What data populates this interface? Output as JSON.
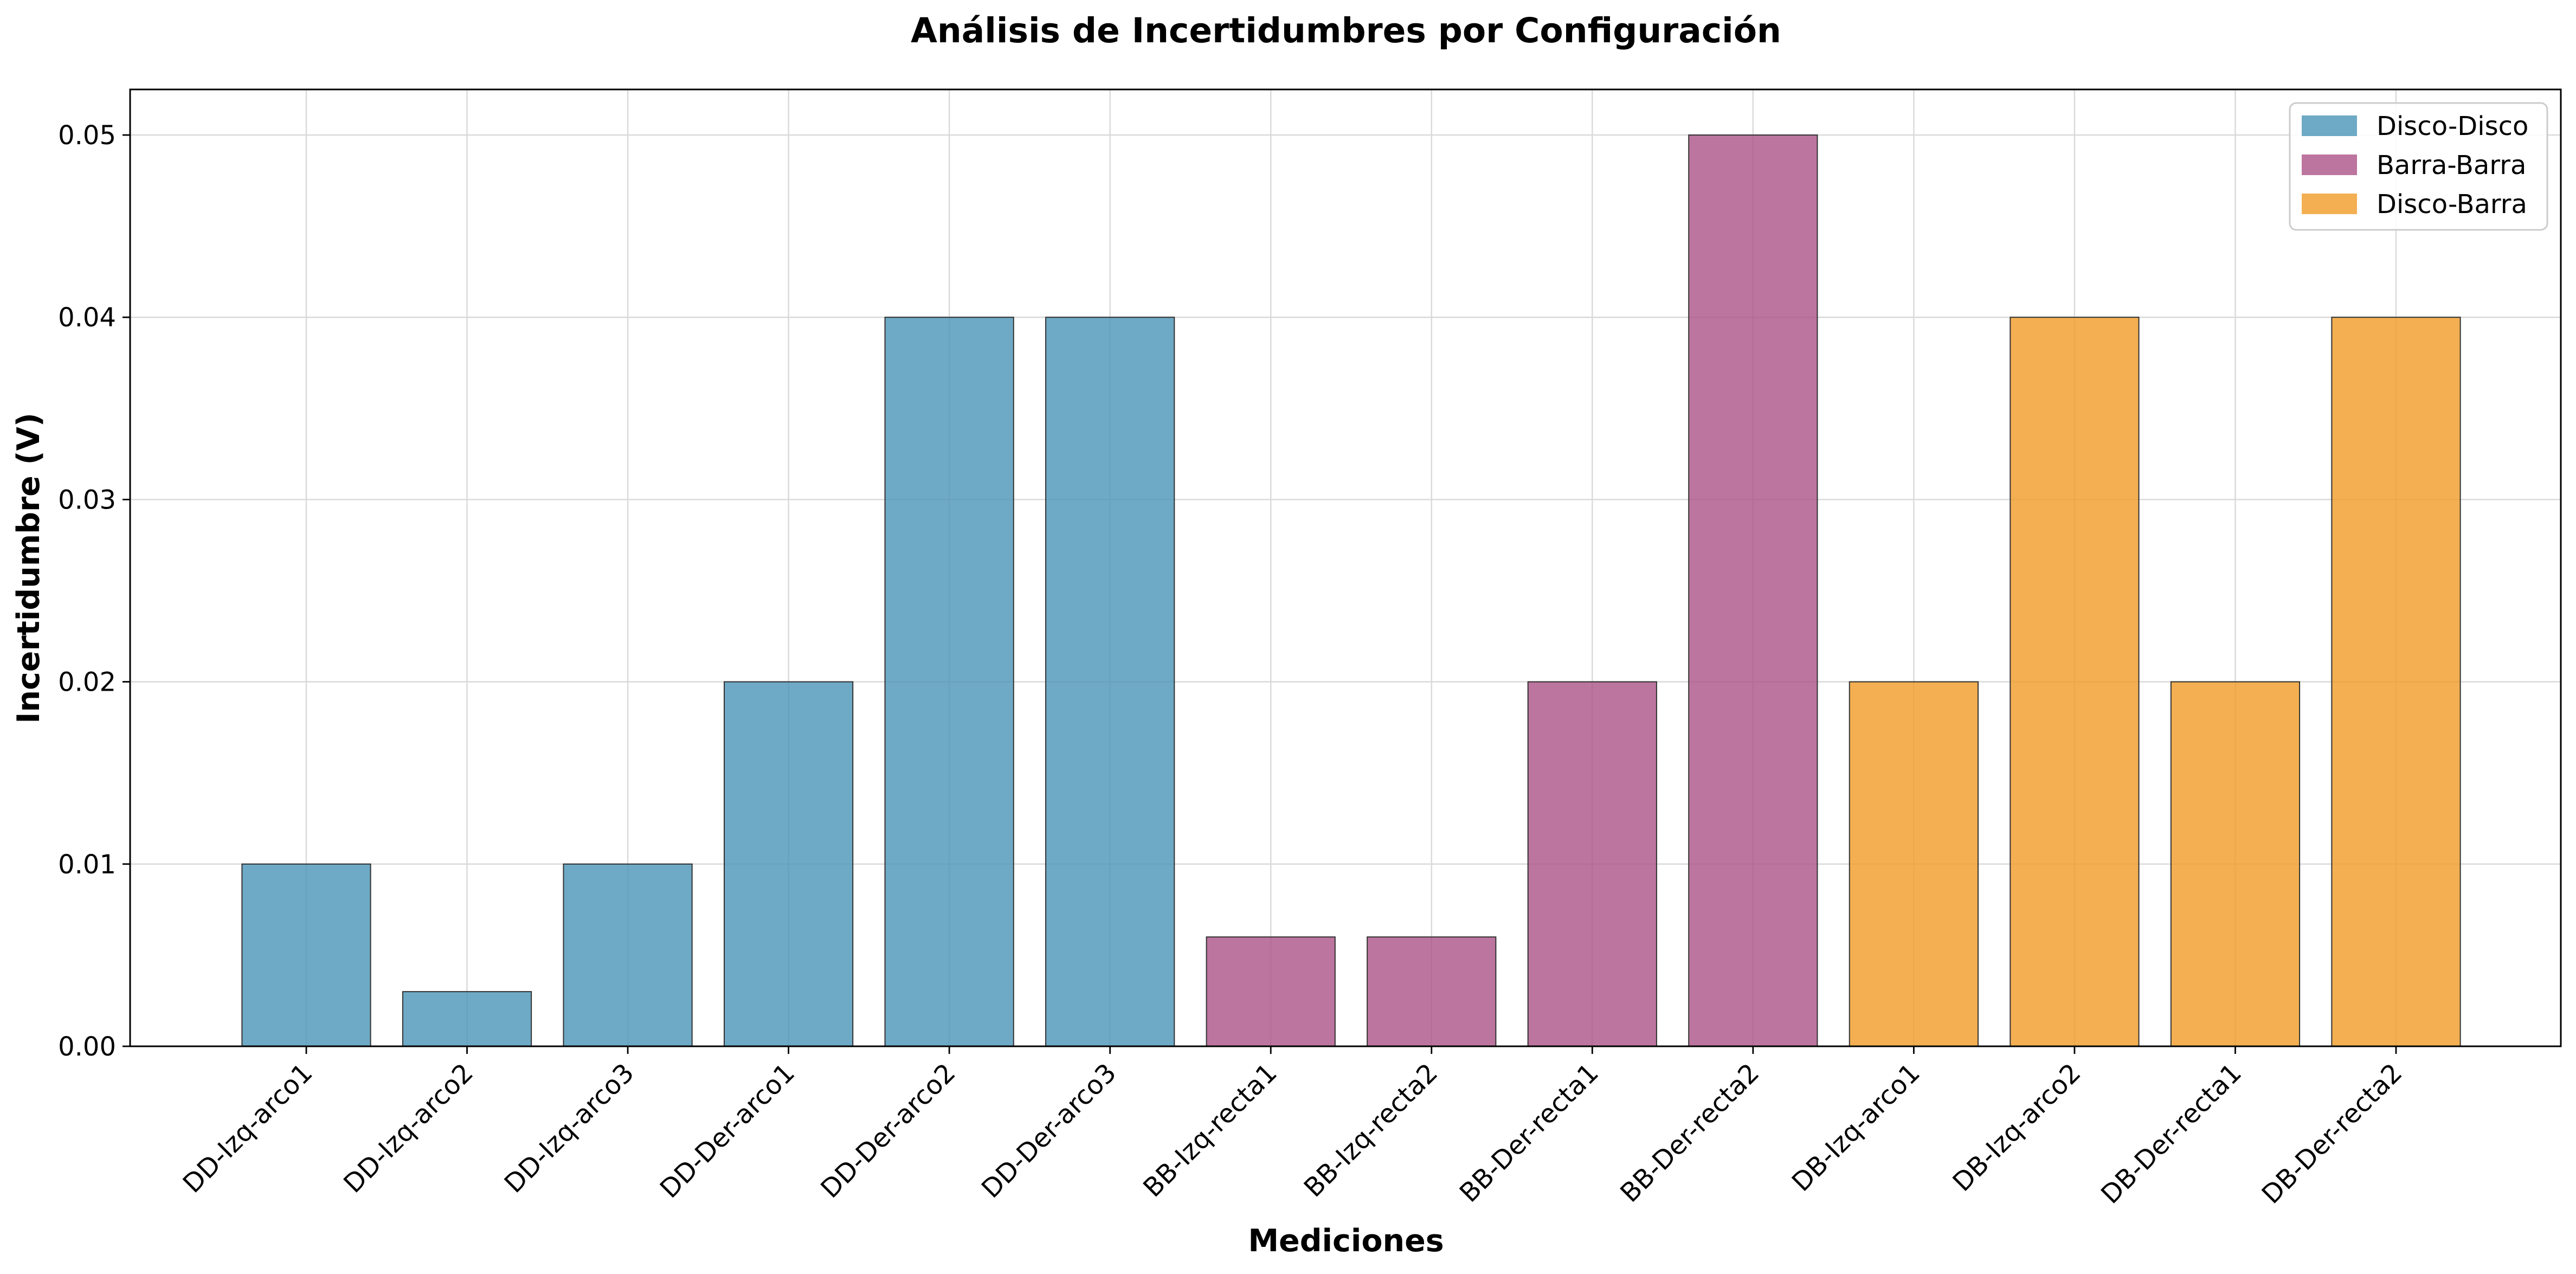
{
  "chart_data": {
    "type": "bar",
    "title": "Análisis de Incertidumbres por Configuración",
    "xlabel": "Mediciones",
    "ylabel": "Incertidumbre (V)",
    "ylim": [
      0,
      0.0525
    ],
    "yticks": [
      0.0,
      0.01,
      0.02,
      0.03,
      0.04,
      0.05
    ],
    "ytick_labels": [
      "0.00",
      "0.01",
      "0.02",
      "0.03",
      "0.04",
      "0.05"
    ],
    "grid": true,
    "legend_position": "top-right",
    "categories": [
      "DD-Izq-arco1",
      "DD-Izq-arco2",
      "DD-Izq-arco3",
      "DD-Der-arco1",
      "DD-Der-arco2",
      "DD-Der-arco3",
      "BB-Izq-recta1",
      "BB-Izq-recta2",
      "BB-Der-recta1",
      "BB-Der-recta2",
      "DB-Izq-arco1",
      "DB-Izq-arco2",
      "DB-Der-recta1",
      "DB-Der-recta2"
    ],
    "values": [
      0.01,
      0.003,
      0.01,
      0.02,
      0.04,
      0.04,
      0.006,
      0.006,
      0.02,
      0.05,
      0.02,
      0.04,
      0.02,
      0.04
    ],
    "bar_groups": [
      0,
      0,
      0,
      0,
      0,
      0,
      1,
      1,
      1,
      1,
      2,
      2,
      2,
      2
    ],
    "groups": [
      {
        "name": "Disco-Disco",
        "color": "#4a94b7"
      },
      {
        "name": "Barra-Barra",
        "color": "#ab5286"
      },
      {
        "name": "Disco-Barra",
        "color": "#f09b27"
      }
    ]
  }
}
